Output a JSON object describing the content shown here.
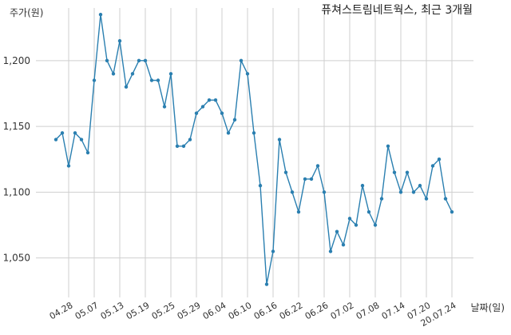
{
  "chart_data": {
    "type": "line",
    "title": "퓨쳐스트림네트웍스, 최근 3개월",
    "ylabel": "주가(원)",
    "xlabel": "날짜(일)",
    "ylim": [
      1020,
      1240
    ],
    "yticks": [
      1050,
      1100,
      1150,
      1200
    ],
    "ytick_labels": [
      "1,050",
      "1,100",
      "1,150",
      "1,200"
    ],
    "xtick_labels": [
      "04.28",
      "05.07",
      "05.13",
      "05.19",
      "05.25",
      "05.29",
      "06.04",
      "06.10",
      "06.16",
      "06.22",
      "06.26",
      "07.02",
      "07.08",
      "07.14",
      "07.20",
      "20.07.24"
    ],
    "xtick_index": [
      2,
      6,
      10,
      14,
      18,
      22,
      26,
      30,
      34,
      38,
      42,
      46,
      50,
      54,
      58,
      62
    ],
    "grid": true,
    "line_color": "#2a7fb0",
    "series": [
      {
        "values": [
          1140,
          1145,
          1120,
          1145,
          1140,
          1130,
          1185,
          1235,
          1200,
          1190,
          1215,
          1180,
          1190,
          1200,
          1200,
          1185,
          1185,
          1165,
          1190,
          1135,
          1135,
          1140,
          1160,
          1165,
          1170,
          1170,
          1160,
          1145,
          1155,
          1200,
          1190,
          1145,
          1105,
          1030,
          1055,
          1140,
          1115,
          1100,
          1085,
          1110,
          1110,
          1120,
          1100,
          1055,
          1070,
          1060,
          1080,
          1075,
          1105,
          1085,
          1075,
          1095,
          1135,
          1115,
          1100,
          1115,
          1100,
          1105,
          1095,
          1120,
          1125,
          1095,
          1085
        ]
      }
    ]
  }
}
